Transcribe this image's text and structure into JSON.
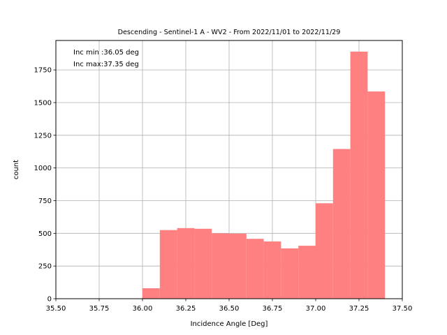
{
  "chart_data": {
    "type": "bar",
    "title": "Descending - Sentinel-1 A - WV2 - From 2022/11/01 to 2022/11/29",
    "xlabel": "Incidence Angle [Deg]",
    "ylabel": "count",
    "xlim": [
      35.5,
      37.5
    ],
    "ylim": [
      0,
      1975
    ],
    "xticks": [
      "35.50",
      "35.75",
      "36.00",
      "36.25",
      "36.50",
      "36.75",
      "37.00",
      "37.25",
      "37.50"
    ],
    "yticks": [
      "0",
      "250",
      "500",
      "750",
      "1000",
      "1250",
      "1500",
      "1750"
    ],
    "grid": true,
    "bar_color": "#ff8080",
    "bins": [
      {
        "x0": 36.0,
        "x1": 36.1,
        "count": 80
      },
      {
        "x0": 36.1,
        "x1": 36.2,
        "count": 525
      },
      {
        "x0": 36.2,
        "x1": 36.3,
        "count": 540
      },
      {
        "x0": 36.3,
        "x1": 36.4,
        "count": 535
      },
      {
        "x0": 36.4,
        "x1": 36.5,
        "count": 500
      },
      {
        "x0": 36.5,
        "x1": 36.6,
        "count": 498
      },
      {
        "x0": 36.6,
        "x1": 36.7,
        "count": 458
      },
      {
        "x0": 36.7,
        "x1": 36.8,
        "count": 438
      },
      {
        "x0": 36.8,
        "x1": 36.9,
        "count": 385
      },
      {
        "x0": 36.9,
        "x1": 37.0,
        "count": 405
      },
      {
        "x0": 37.0,
        "x1": 37.1,
        "count": 730
      },
      {
        "x0": 37.1,
        "x1": 37.2,
        "count": 1145
      },
      {
        "x0": 37.2,
        "x1": 37.3,
        "count": 1890
      },
      {
        "x0": 37.3,
        "x1": 37.4,
        "count": 1585
      }
    ],
    "annotations": [
      "Inc min :36.05 deg",
      "Inc max:37.35 deg"
    ]
  }
}
